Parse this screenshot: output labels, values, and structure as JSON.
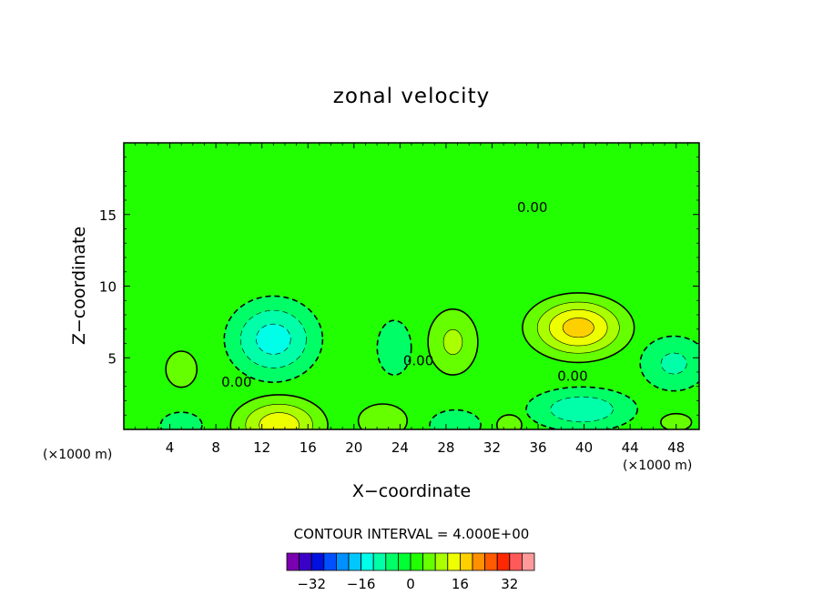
{
  "chart_data": {
    "type": "heatmap",
    "title": "zonal velocity",
    "xlabel": "X−coordinate",
    "ylabel": "Z−coordinate",
    "x_unit": "(×1000 m)",
    "y_unit": "(×1000 m)",
    "xlim": [
      0,
      50
    ],
    "ylim": [
      0,
      20
    ],
    "x_ticks": [
      4,
      8,
      12,
      16,
      20,
      24,
      28,
      32,
      36,
      40,
      44,
      48
    ],
    "x_tick_labels": [
      "4",
      "8",
      "12",
      "16",
      "20",
      "24",
      "28",
      "32",
      "36",
      "40",
      "44",
      "48"
    ],
    "y_ticks": [
      5,
      10,
      15
    ],
    "y_tick_labels": [
      "5",
      "10",
      "15"
    ],
    "contour_interval_text": "CONTOUR INTERVAL = 4.000E+00",
    "contour_interval": 4,
    "zero_contour_label": "0.00",
    "zero_label_positions": [
      [
        35.5,
        15.5
      ],
      [
        9.8,
        3.3
      ],
      [
        25.6,
        4.8
      ],
      [
        39.0,
        3.7
      ]
    ],
    "colorbar": {
      "levels": [
        -36,
        -32,
        -28,
        -24,
        -20,
        -16,
        -12,
        -8,
        -4,
        0,
        4,
        8,
        12,
        16,
        20,
        24,
        28,
        32,
        36
      ],
      "colors": [
        "#7a00b0",
        "#3a00c8",
        "#0010e0",
        "#0050ff",
        "#0090ff",
        "#00c8ff",
        "#00ffe8",
        "#00ffa8",
        "#00ff66",
        "#00ff33",
        "#22ff00",
        "#66ff00",
        "#aaff00",
        "#eeff00",
        "#ffd000",
        "#ff9000",
        "#ff5a00",
        "#ff2800",
        "#ff5a5a",
        "#ff9a9a"
      ],
      "tick_values": [
        -32,
        -16,
        0,
        16,
        32
      ],
      "tick_labels": [
        "−32",
        "−16",
        "0",
        "16",
        "32"
      ]
    },
    "background_color": "#22ff00",
    "field_cells": [
      {
        "x": 13.0,
        "z": 6.3,
        "sx": 2.7,
        "sz": 1.9,
        "amp": -14
      },
      {
        "x": 13.5,
        "z": 0.3,
        "sx": 2.6,
        "sz": 1.3,
        "amp": 15
      },
      {
        "x": 5.0,
        "z": 4.2,
        "sx": 1.5,
        "sz": 1.4,
        "amp": 6
      },
      {
        "x": 5.0,
        "z": 0.3,
        "sx": 2.0,
        "sz": 1.0,
        "amp": -6
      },
      {
        "x": 2.2,
        "z": 6.5,
        "sx": 3.0,
        "sz": 1.2,
        "amp": -3
      },
      {
        "x": 23.5,
        "z": 5.7,
        "sx": 1.4,
        "sz": 1.8,
        "amp": -7
      },
      {
        "x": 22.5,
        "z": 0.6,
        "sx": 1.8,
        "sz": 1.0,
        "amp": 8
      },
      {
        "x": 28.6,
        "z": 6.1,
        "sx": 1.7,
        "sz": 1.8,
        "amp": 9
      },
      {
        "x": 28.8,
        "z": 0.3,
        "sx": 2.1,
        "sz": 1.0,
        "amp": -7
      },
      {
        "x": 33.5,
        "z": 5.2,
        "sx": 1.1,
        "sz": 1.8,
        "amp": -4
      },
      {
        "x": 33.5,
        "z": 0.3,
        "sx": 1.2,
        "sz": 0.8,
        "amp": 6
      },
      {
        "x": 39.5,
        "z": 7.1,
        "sx": 2.8,
        "sz": 1.4,
        "amp": 18
      },
      {
        "x": 39.8,
        "z": 1.4,
        "sx": 3.4,
        "sz": 1.1,
        "amp": -11
      },
      {
        "x": 47.8,
        "z": 4.6,
        "sx": 2.3,
        "sz": 1.5,
        "amp": -9
      },
      {
        "x": 48.0,
        "z": 0.5,
        "sx": 2.0,
        "sz": 0.9,
        "amp": 5
      },
      {
        "x": 26.2,
        "z": 4.0,
        "sx": 0.8,
        "sz": 1.8,
        "amp": -3
      },
      {
        "x": 44.5,
        "z": 1.8,
        "sx": 1.0,
        "sz": 0.8,
        "amp": 3
      }
    ]
  }
}
